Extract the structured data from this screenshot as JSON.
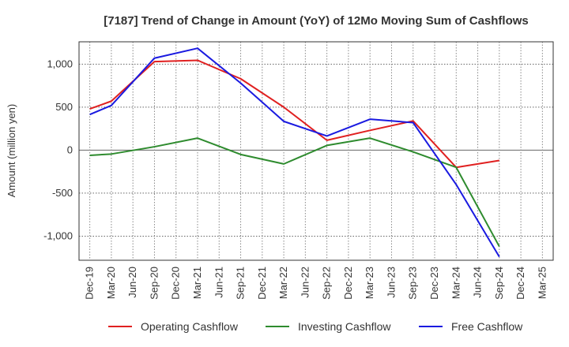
{
  "chart_data": {
    "type": "line",
    "title": "[7187]  Trend of Change in Amount (YoY) of 12Mo Moving Sum of Cashflows",
    "xlabel": "",
    "ylabel": "Amount (million yen)",
    "ylim": [
      -1280,
      1260
    ],
    "yticks": [
      1000,
      500,
      0,
      -500,
      -1000
    ],
    "ytick_labels": [
      "1,000",
      "500",
      "0",
      "-500",
      "-1,000"
    ],
    "categories": [
      "Dec-19",
      "Mar-20",
      "Jun-20",
      "Sep-20",
      "Dec-20",
      "Mar-21",
      "Jun-21",
      "Sep-21",
      "Dec-21",
      "Mar-22",
      "Jun-22",
      "Sep-22",
      "Dec-22",
      "Mar-23",
      "Jun-23",
      "Sep-23",
      "Dec-23",
      "Mar-24",
      "Jun-24",
      "Sep-24",
      "Dec-24",
      "Mar-25"
    ],
    "grid": true,
    "legend_position": "bottom",
    "series": [
      {
        "name": "Operating Cashflow",
        "color": "#e02020",
        "values": [
          480,
          570,
          null,
          1030,
          null,
          1045,
          null,
          830,
          null,
          500,
          null,
          115,
          null,
          230,
          null,
          340,
          null,
          -200,
          null,
          -120,
          null,
          null
        ]
      },
      {
        "name": "Investing Cashflow",
        "color": "#2e8b2e",
        "values": [
          -60,
          -45,
          null,
          40,
          null,
          140,
          null,
          -50,
          null,
          -160,
          null,
          55,
          null,
          140,
          null,
          -20,
          null,
          -200,
          null,
          -1120,
          null,
          null
        ]
      },
      {
        "name": "Free Cashflow",
        "color": "#1a1ae0",
        "values": [
          415,
          520,
          null,
          1070,
          null,
          1185,
          null,
          780,
          null,
          335,
          null,
          165,
          null,
          360,
          null,
          320,
          null,
          -400,
          null,
          -1240,
          null,
          null
        ]
      }
    ]
  }
}
